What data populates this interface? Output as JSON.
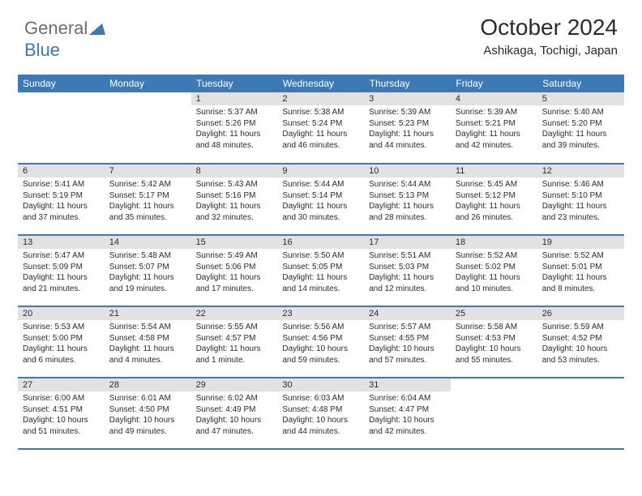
{
  "logo": {
    "text1": "General",
    "text2": "Blue"
  },
  "header": {
    "month": "October 2024",
    "location": "Ashikaga, Tochigi, Japan"
  },
  "colors": {
    "brand": "#3c79b5",
    "daynum_bg": "#e2e2e2",
    "text": "#2b2b2b",
    "white": "#ffffff",
    "logo_gray": "#6d6d6d"
  },
  "weekdays": [
    "Sunday",
    "Monday",
    "Tuesday",
    "Wednesday",
    "Thursday",
    "Friday",
    "Saturday"
  ],
  "weeks": [
    [
      null,
      null,
      {
        "n": "1",
        "sr": "Sunrise: 5:37 AM",
        "ss": "Sunset: 5:26 PM",
        "dl": "Daylight: 11 hours and 48 minutes."
      },
      {
        "n": "2",
        "sr": "Sunrise: 5:38 AM",
        "ss": "Sunset: 5:24 PM",
        "dl": "Daylight: 11 hours and 46 minutes."
      },
      {
        "n": "3",
        "sr": "Sunrise: 5:39 AM",
        "ss": "Sunset: 5:23 PM",
        "dl": "Daylight: 11 hours and 44 minutes."
      },
      {
        "n": "4",
        "sr": "Sunrise: 5:39 AM",
        "ss": "Sunset: 5:21 PM",
        "dl": "Daylight: 11 hours and 42 minutes."
      },
      {
        "n": "5",
        "sr": "Sunrise: 5:40 AM",
        "ss": "Sunset: 5:20 PM",
        "dl": "Daylight: 11 hours and 39 minutes."
      }
    ],
    [
      {
        "n": "6",
        "sr": "Sunrise: 5:41 AM",
        "ss": "Sunset: 5:19 PM",
        "dl": "Daylight: 11 hours and 37 minutes."
      },
      {
        "n": "7",
        "sr": "Sunrise: 5:42 AM",
        "ss": "Sunset: 5:17 PM",
        "dl": "Daylight: 11 hours and 35 minutes."
      },
      {
        "n": "8",
        "sr": "Sunrise: 5:43 AM",
        "ss": "Sunset: 5:16 PM",
        "dl": "Daylight: 11 hours and 32 minutes."
      },
      {
        "n": "9",
        "sr": "Sunrise: 5:44 AM",
        "ss": "Sunset: 5:14 PM",
        "dl": "Daylight: 11 hours and 30 minutes."
      },
      {
        "n": "10",
        "sr": "Sunrise: 5:44 AM",
        "ss": "Sunset: 5:13 PM",
        "dl": "Daylight: 11 hours and 28 minutes."
      },
      {
        "n": "11",
        "sr": "Sunrise: 5:45 AM",
        "ss": "Sunset: 5:12 PM",
        "dl": "Daylight: 11 hours and 26 minutes."
      },
      {
        "n": "12",
        "sr": "Sunrise: 5:46 AM",
        "ss": "Sunset: 5:10 PM",
        "dl": "Daylight: 11 hours and 23 minutes."
      }
    ],
    [
      {
        "n": "13",
        "sr": "Sunrise: 5:47 AM",
        "ss": "Sunset: 5:09 PM",
        "dl": "Daylight: 11 hours and 21 minutes."
      },
      {
        "n": "14",
        "sr": "Sunrise: 5:48 AM",
        "ss": "Sunset: 5:07 PM",
        "dl": "Daylight: 11 hours and 19 minutes."
      },
      {
        "n": "15",
        "sr": "Sunrise: 5:49 AM",
        "ss": "Sunset: 5:06 PM",
        "dl": "Daylight: 11 hours and 17 minutes."
      },
      {
        "n": "16",
        "sr": "Sunrise: 5:50 AM",
        "ss": "Sunset: 5:05 PM",
        "dl": "Daylight: 11 hours and 14 minutes."
      },
      {
        "n": "17",
        "sr": "Sunrise: 5:51 AM",
        "ss": "Sunset: 5:03 PM",
        "dl": "Daylight: 11 hours and 12 minutes."
      },
      {
        "n": "18",
        "sr": "Sunrise: 5:52 AM",
        "ss": "Sunset: 5:02 PM",
        "dl": "Daylight: 11 hours and 10 minutes."
      },
      {
        "n": "19",
        "sr": "Sunrise: 5:52 AM",
        "ss": "Sunset: 5:01 PM",
        "dl": "Daylight: 11 hours and 8 minutes."
      }
    ],
    [
      {
        "n": "20",
        "sr": "Sunrise: 5:53 AM",
        "ss": "Sunset: 5:00 PM",
        "dl": "Daylight: 11 hours and 6 minutes."
      },
      {
        "n": "21",
        "sr": "Sunrise: 5:54 AM",
        "ss": "Sunset: 4:58 PM",
        "dl": "Daylight: 11 hours and 4 minutes."
      },
      {
        "n": "22",
        "sr": "Sunrise: 5:55 AM",
        "ss": "Sunset: 4:57 PM",
        "dl": "Daylight: 11 hours and 1 minute."
      },
      {
        "n": "23",
        "sr": "Sunrise: 5:56 AM",
        "ss": "Sunset: 4:56 PM",
        "dl": "Daylight: 10 hours and 59 minutes."
      },
      {
        "n": "24",
        "sr": "Sunrise: 5:57 AM",
        "ss": "Sunset: 4:55 PM",
        "dl": "Daylight: 10 hours and 57 minutes."
      },
      {
        "n": "25",
        "sr": "Sunrise: 5:58 AM",
        "ss": "Sunset: 4:53 PM",
        "dl": "Daylight: 10 hours and 55 minutes."
      },
      {
        "n": "26",
        "sr": "Sunrise: 5:59 AM",
        "ss": "Sunset: 4:52 PM",
        "dl": "Daylight: 10 hours and 53 minutes."
      }
    ],
    [
      {
        "n": "27",
        "sr": "Sunrise: 6:00 AM",
        "ss": "Sunset: 4:51 PM",
        "dl": "Daylight: 10 hours and 51 minutes."
      },
      {
        "n": "28",
        "sr": "Sunrise: 6:01 AM",
        "ss": "Sunset: 4:50 PM",
        "dl": "Daylight: 10 hours and 49 minutes."
      },
      {
        "n": "29",
        "sr": "Sunrise: 6:02 AM",
        "ss": "Sunset: 4:49 PM",
        "dl": "Daylight: 10 hours and 47 minutes."
      },
      {
        "n": "30",
        "sr": "Sunrise: 6:03 AM",
        "ss": "Sunset: 4:48 PM",
        "dl": "Daylight: 10 hours and 44 minutes."
      },
      {
        "n": "31",
        "sr": "Sunrise: 6:04 AM",
        "ss": "Sunset: 4:47 PM",
        "dl": "Daylight: 10 hours and 42 minutes."
      },
      null,
      null
    ]
  ]
}
